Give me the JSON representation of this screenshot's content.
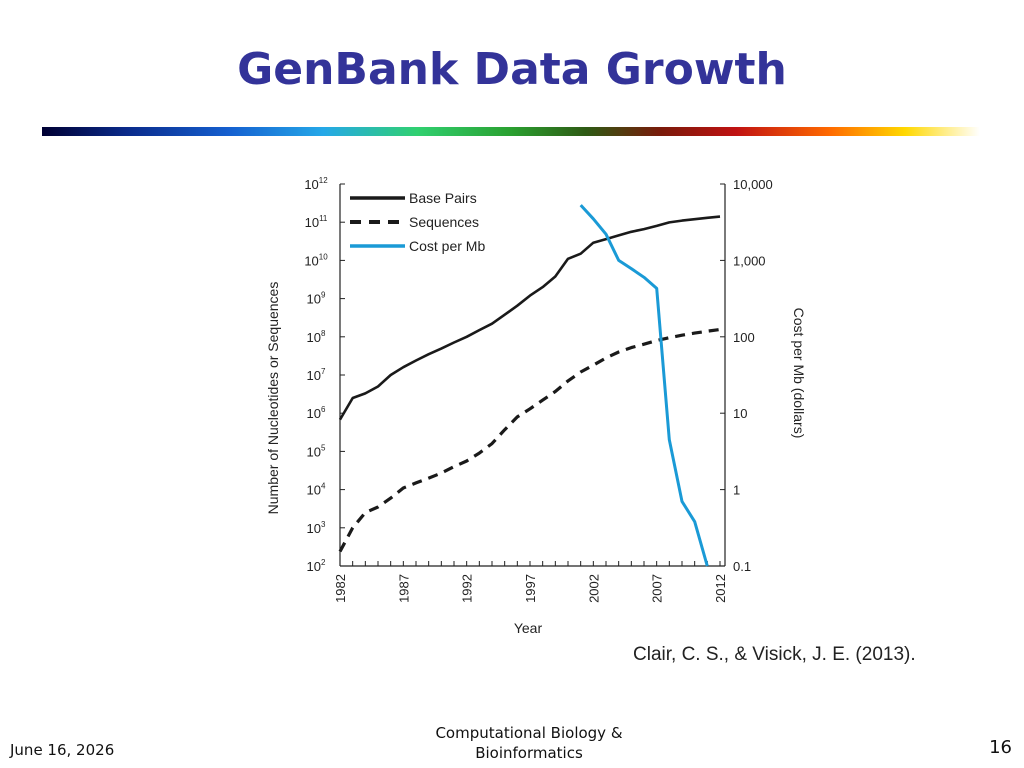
{
  "slide": {
    "title": "GenBank Data Growth",
    "citation": "Clair, C. S., & Visick, J. E. (2013).",
    "footer_date": "June 16, 2026",
    "footer_center_line1": "Computational Biology &",
    "footer_center_line2": "Bioinformatics",
    "page_number": "16"
  },
  "colors": {
    "title": "#333399",
    "base_pairs": "#1a1a1a",
    "sequences": "#1a1a1a",
    "cost": "#1a9ad6"
  },
  "chart_data": {
    "type": "line",
    "xlabel": "Year",
    "ylabel_left": "Number of Nucleotides or Sequences",
    "ylabel_right": "Cost per Mb (dollars)",
    "x_ticks": [
      "1982",
      "1987",
      "1992",
      "1997",
      "2002",
      "2007",
      "2012"
    ],
    "xlim": [
      1982,
      2012
    ],
    "y_left_scale": "log",
    "y_left_ticks_exp": [
      2,
      3,
      4,
      5,
      6,
      7,
      8,
      9,
      10,
      11,
      12
    ],
    "y_left_lim": [
      100,
      1000000000000
    ],
    "y_right_scale": "log",
    "y_right_ticks": [
      "10,000",
      "1,000",
      "100",
      "10",
      "1",
      "0.1"
    ],
    "y_right_lim": [
      0.1,
      10000
    ],
    "legend": {
      "placement": "top-left"
    },
    "series": [
      {
        "name": "Base Pairs",
        "axis": "left",
        "style": "solid",
        "x": [
          1982,
          1983,
          1984,
          1985,
          1986,
          1987,
          1988,
          1989,
          1990,
          1991,
          1992,
          1993,
          1994,
          1995,
          1996,
          1997,
          1998,
          1999,
          2000,
          2001,
          2002,
          2003,
          2004,
          2005,
          2006,
          2007,
          2008,
          2009,
          2010,
          2011,
          2012
        ],
        "y": [
          680000.0,
          2500000.0,
          3300000.0,
          5000000.0,
          10000000.0,
          16000000.0,
          24000000.0,
          35000000.0,
          49000000.0,
          71000000.0,
          100000000.0,
          150000000.0,
          220000000.0,
          380000000.0,
          650000000.0,
          1200000000.0,
          2000000000.0,
          3800000000.0,
          11000000000.0,
          15000000000.0,
          29000000000.0,
          36000000000.0,
          45000000000.0,
          56000000000.0,
          66000000000.0,
          80000000000.0,
          99000000000.0,
          110000000000.0,
          120000000000.0,
          130000000000.0,
          140000000000.0
        ]
      },
      {
        "name": "Sequences",
        "axis": "left",
        "style": "dashed",
        "x": [
          1982,
          1983,
          1984,
          1985,
          1986,
          1987,
          1988,
          1989,
          1990,
          1991,
          1992,
          1993,
          1994,
          1995,
          1996,
          1997,
          1998,
          1999,
          2000,
          2001,
          2002,
          2003,
          2004,
          2005,
          2006,
          2007,
          2008,
          2009,
          2010,
          2011,
          2012
        ],
        "y": [
          240,
          1000,
          2500,
          3500,
          6000,
          11000,
          15000,
          20000,
          27000,
          40000,
          56000,
          90000,
          160000,
          370000,
          800000,
          1300000,
          2200000,
          3700000,
          7000000,
          12000000,
          18000000,
          28000000,
          40000000,
          52000000,
          64000000,
          80000000,
          95000000,
          110000000,
          125000000,
          140000000,
          155000000
        ]
      },
      {
        "name": "Cost per Mb",
        "axis": "right",
        "style": "solid",
        "x": [
          2001,
          2002,
          2003,
          2004,
          2005,
          2006,
          2007,
          2008,
          2009,
          2010,
          2011
        ],
        "y": [
          5300,
          3500,
          2200,
          1000,
          780,
          600,
          430,
          4.5,
          0.7,
          0.38,
          0.1
        ]
      }
    ]
  }
}
